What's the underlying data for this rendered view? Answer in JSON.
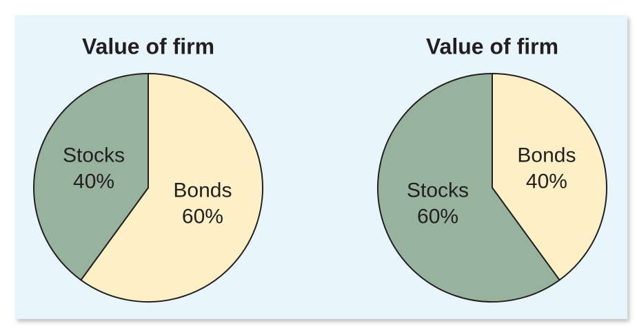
{
  "chart_data": [
    {
      "type": "pie",
      "title": "Value of firm",
      "categories": [
        "Bonds",
        "Stocks"
      ],
      "values": [
        60,
        40
      ],
      "value_labels": [
        "60%",
        "40%"
      ],
      "colors": [
        "#fdefc6",
        "#97b39e"
      ]
    },
    {
      "type": "pie",
      "title": "Value of firm",
      "categories": [
        "Bonds",
        "Stocks"
      ],
      "values": [
        40,
        60
      ],
      "value_labels": [
        "40%",
        "60%"
      ],
      "colors": [
        "#fdefc6",
        "#97b39e"
      ]
    }
  ]
}
